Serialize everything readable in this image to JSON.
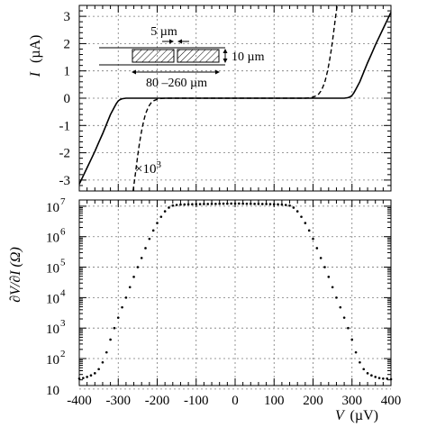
{
  "chart_data": [
    {
      "panel": "top",
      "type": "line",
      "ylabel_var": "I",
      "ylabel_unit": "(µA)",
      "xlim": [
        -400,
        400
      ],
      "ylim": [
        -3.4,
        3.4
      ],
      "yticks": [
        "3",
        "2",
        "1",
        "0",
        "-1",
        "-2",
        "-3"
      ],
      "grid": true,
      "series": [
        {
          "style": "solid",
          "x": [
            -400,
            -390,
            -380,
            -370,
            -360,
            -350,
            -340,
            -330,
            -320,
            -310,
            -305,
            -300,
            -295,
            -290,
            -280,
            -270,
            -260,
            -240,
            -200,
            -150,
            -100,
            -50,
            0,
            50,
            100,
            150,
            200,
            240,
            260,
            270,
            280,
            290,
            295,
            300,
            305,
            310,
            320,
            330,
            340,
            350,
            360,
            370,
            380,
            390,
            400
          ],
          "y": [
            -3.15,
            -2.85,
            -2.55,
            -2.25,
            -1.95,
            -1.62,
            -1.3,
            -0.95,
            -0.6,
            -0.33,
            -0.2,
            -0.1,
            -0.05,
            -0.02,
            0.0,
            0.0,
            0.0,
            0.0,
            0.0,
            0.0,
            0.0,
            0.0,
            0.0,
            0.0,
            0.0,
            0.0,
            0.0,
            0.0,
            0.0,
            0.0,
            0.0,
            0.02,
            0.05,
            0.1,
            0.2,
            0.33,
            0.6,
            0.95,
            1.3,
            1.62,
            1.95,
            2.25,
            2.55,
            2.85,
            3.15
          ]
        },
        {
          "style": "dashed",
          "annotation": "×10",
          "annotation_exp": "3",
          "x": [
            -262,
            -258,
            -254,
            -250,
            -246,
            -242,
            -238,
            -234,
            -230,
            -225,
            -220,
            -215,
            -210,
            -200,
            -190,
            -180,
            -150,
            0,
            150,
            180,
            190,
            200,
            210,
            215,
            220,
            225,
            230,
            234,
            238,
            242,
            246,
            250,
            254,
            258,
            262
          ],
          "y": [
            -3.4,
            -3.0,
            -2.55,
            -2.1,
            -1.7,
            -1.35,
            -1.05,
            -0.8,
            -0.58,
            -0.4,
            -0.26,
            -0.16,
            -0.1,
            -0.04,
            -0.01,
            0.0,
            0.0,
            0.0,
            0.0,
            0.0,
            0.01,
            0.04,
            0.1,
            0.16,
            0.26,
            0.4,
            0.58,
            0.8,
            1.05,
            1.35,
            1.7,
            2.1,
            2.55,
            3.0,
            3.4
          ]
        }
      ],
      "inset": {
        "gap_label": "5 µm",
        "height_label": "10 µm",
        "length_label": "80 –260 µm"
      }
    },
    {
      "panel": "bottom",
      "type": "scatter",
      "ylabel_text": "∂V/∂I  (Ω)",
      "xlabel_var": "V",
      "xlabel_unit": "(µV)",
      "xlim": [
        -400,
        400
      ],
      "yscale": "log",
      "ylim": [
        13,
        16000000
      ],
      "xticks": [
        "-400",
        "-300",
        "-200",
        "-100",
        "0",
        "100",
        "200",
        "300",
        "400"
      ],
      "yticks": [
        {
          "base": "10",
          "exp": "7"
        },
        {
          "base": "10",
          "exp": "6"
        },
        {
          "base": "10",
          "exp": "5"
        },
        {
          "base": "10",
          "exp": "4"
        },
        {
          "base": "10",
          "exp": "3"
        },
        {
          "base": "10",
          "exp": "2"
        },
        {
          "base": "10",
          "exp": ""
        }
      ],
      "grid": true,
      "points_x": [
        -400,
        -390,
        -380,
        -370,
        -360,
        -350,
        -340,
        -330,
        -320,
        -310,
        -300,
        -290,
        -280,
        -270,
        -260,
        -250,
        -240,
        -230,
        -220,
        -210,
        -200,
        -190,
        -180,
        -170,
        -160,
        -150,
        -140,
        -130,
        -120,
        -110,
        -100,
        -90,
        -80,
        -70,
        -60,
        -50,
        -40,
        -30,
        -20,
        -10,
        0,
        10,
        20,
        30,
        40,
        50,
        60,
        70,
        80,
        90,
        100,
        110,
        120,
        130,
        140,
        150,
        160,
        170,
        180,
        190,
        200,
        210,
        220,
        230,
        240,
        250,
        260,
        270,
        280,
        290,
        300,
        310,
        320,
        330,
        340,
        350,
        360,
        370,
        380,
        390,
        400
      ],
      "points_y": [
        22,
        23,
        25,
        28,
        33,
        45,
        75,
        160,
        420,
        1000,
        2200,
        4800,
        10000,
        22000,
        48000,
        100000,
        200000,
        420000,
        850000,
        1600000,
        2800000,
        4500000,
        6800000,
        9000000,
        10500000,
        11000000,
        11300000,
        11400000,
        11500000,
        11600000,
        11700000,
        11700000,
        11800000,
        11800000,
        11900000,
        11900000,
        12000000,
        12100000,
        12100000,
        12200000,
        12200000,
        12200000,
        12100000,
        12000000,
        12000000,
        11900000,
        11900000,
        11800000,
        11800000,
        11700000,
        11600000,
        11500000,
        11300000,
        11000000,
        10500000,
        9000000,
        6800000,
        4500000,
        2800000,
        1600000,
        850000,
        420000,
        200000,
        100000,
        48000,
        22000,
        10000,
        4800,
        2200,
        1000,
        420,
        160,
        75,
        45,
        33,
        28,
        25,
        23,
        22,
        22,
        21
      ]
    }
  ]
}
